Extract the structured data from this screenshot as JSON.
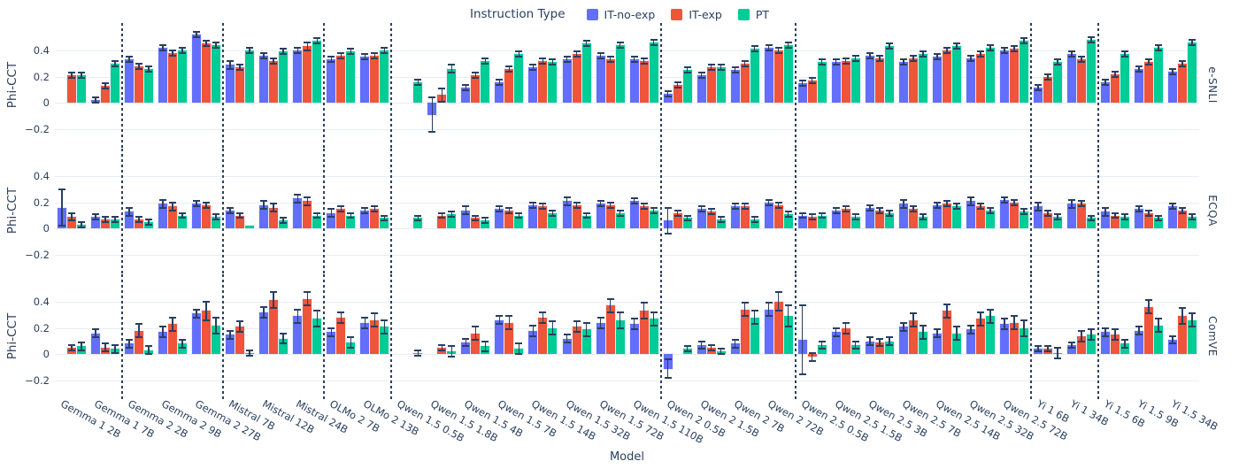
{
  "legend": {
    "title": "Instruction Type",
    "items": [
      {
        "label": "IT-no-exp",
        "color": "#636EFA"
      },
      {
        "label": "IT-exp",
        "color": "#EF553B"
      },
      {
        "label": "PT",
        "color": "#00CC96"
      }
    ]
  },
  "axes": {
    "y_label": "Phi-CCT",
    "x_label": "Model",
    "y_ticks": [
      {
        "label": "0.4",
        "value": 0.4
      },
      {
        "label": "0.2",
        "value": 0.2
      },
      {
        "label": "0",
        "value": 0
      },
      {
        "label": "−0.2",
        "value": -0.2
      }
    ]
  },
  "style": {
    "text_color": "#2a3f5f",
    "grid_color": "#e9edf5",
    "error_color": "#2a3f5f"
  },
  "chart_data": {
    "type": "bar",
    "orientation": "vertical",
    "facets": [
      "e-SNLI",
      "ECQA",
      "ComVE"
    ],
    "ylim": [
      -0.32,
      0.58
    ],
    "grid": true,
    "legend_position": "top-center",
    "categories": [
      "Gemma 1 2B",
      "Gemma 1 7B",
      "Gemma 2 2B",
      "Gemma 2 9B",
      "Gemma 2 27B",
      "Mistral 7B",
      "Mistral 12B",
      "Mistral 24B",
      "OLMo 2 7B",
      "OLMo 2 13B",
      "Qwen 1.5 0.5B",
      "Qwen 1.5 1.8B",
      "Qwen 1.5 4B",
      "Qwen 1.5 7B",
      "Qwen 1.5 14B",
      "Qwen 1.5 32B",
      "Qwen 1.5 72B",
      "Qwen 1.5 110B",
      "Qwen 2 0.5B",
      "Qwen 2 1.5B",
      "Qwen 2 7B",
      "Qwen 2 72B",
      "Qwen 2.5 0.5B",
      "Qwen 2.5 1.5B",
      "Qwen 2.5 3B",
      "Qwen 2.5 7B",
      "Qwen 2.5 14B",
      "Qwen 2.5 32B",
      "Qwen 2.5 72B",
      "Yi 1 6B",
      "Yi 1 34B",
      "Yi 1.5 6B",
      "Yi 1.5 9B",
      "Yi 1.5 34B"
    ],
    "separators_after": [
      1,
      4,
      7,
      9,
      17,
      21,
      28,
      30
    ],
    "panels": [
      {
        "facet": "e-SNLI",
        "series": [
          {
            "name": "IT-no-exp",
            "values": [
              0,
              0.02,
              0.33,
              0.42,
              0.52,
              0.29,
              0.36,
              0.4,
              0.33,
              0.35,
              0,
              -0.09,
              0.12,
              0.16,
              0.27,
              0.33,
              0.36,
              0.33,
              0.07,
              0.21,
              0.25,
              0.42,
              0.15,
              0.31,
              0.36,
              0.31,
              0.35,
              0.34,
              0.4,
              0.12,
              0.37,
              0.16,
              0.26,
              0.24
            ],
            "errors": [
              0,
              0.02,
              0.02,
              0.02,
              0.02,
              0.03,
              0.02,
              0.02,
              0.02,
              0.02,
              0,
              0.13,
              0.02,
              0.02,
              0.02,
              0.02,
              0.02,
              0.02,
              0.02,
              0.02,
              0.02,
              0.02,
              0.02,
              0.02,
              0.02,
              0.02,
              0.02,
              0.02,
              0.02,
              0.02,
              0.02,
              0.02,
              0.02,
              0.02
            ]
          },
          {
            "name": "IT-exp",
            "values": [
              0.21,
              0.13,
              0.28,
              0.38,
              0.45,
              0.27,
              0.32,
              0.43,
              0.36,
              0.36,
              0,
              0.06,
              0.21,
              0.26,
              0.32,
              0.37,
              0.33,
              0.32,
              0.14,
              0.27,
              0.3,
              0.4,
              0.17,
              0.32,
              0.34,
              0.34,
              0.4,
              0.37,
              0.41,
              0.2,
              0.33,
              0.22,
              0.31,
              0.3
            ],
            "errors": [
              0.02,
              0.02,
              0.02,
              0.02,
              0.02,
              0.02,
              0.02,
              0.03,
              0.02,
              0.02,
              0,
              0.05,
              0.02,
              0.02,
              0.02,
              0.02,
              0.02,
              0.02,
              0.02,
              0.02,
              0.02,
              0.02,
              0.02,
              0.02,
              0.02,
              0.02,
              0.02,
              0.02,
              0.02,
              0.02,
              0.02,
              0.02,
              0.02,
              0.02
            ]
          },
          {
            "name": "PT",
            "values": [
              0.21,
              0.3,
              0.26,
              0.4,
              0.44,
              0.4,
              0.39,
              0.47,
              0.39,
              0.4,
              0.16,
              0.26,
              0.32,
              0.37,
              0.31,
              0.45,
              0.44,
              0.46,
              0.25,
              0.27,
              0.41,
              0.44,
              0.31,
              0.34,
              0.43,
              0.37,
              0.43,
              0.42,
              0.47,
              0.31,
              0.48,
              0.37,
              0.42,
              0.46
            ],
            "errors": [
              0.02,
              0.02,
              0.02,
              0.02,
              0.02,
              0.02,
              0.02,
              0.02,
              0.02,
              0.02,
              0.02,
              0.03,
              0.02,
              0.02,
              0.02,
              0.02,
              0.02,
              0.02,
              0.02,
              0.02,
              0.02,
              0.02,
              0.02,
              0.02,
              0.02,
              0.02,
              0.02,
              0.02,
              0.02,
              0.02,
              0.02,
              0.02,
              0.02,
              0.02
            ]
          }
        ]
      },
      {
        "facet": "ECQA",
        "series": [
          {
            "name": "IT-no-exp",
            "values": [
              0.16,
              0.09,
              0.13,
              0.19,
              0.19,
              0.14,
              0.18,
              0.23,
              0.12,
              0.14,
              0,
              0,
              0.14,
              0.15,
              0.18,
              0.21,
              0.19,
              0.21,
              0.06,
              0.15,
              0.17,
              0.2,
              0.1,
              0.14,
              0.16,
              0.19,
              0.18,
              0.21,
              0.22,
              0.17,
              0.19,
              0.13,
              0.15,
              0.17
            ],
            "errors": [
              0.14,
              0.02,
              0.03,
              0.03,
              0.02,
              0.02,
              0.03,
              0.03,
              0.03,
              0.02,
              0,
              0,
              0.03,
              0.02,
              0.02,
              0.03,
              0.02,
              0.02,
              0.1,
              0.02,
              0.02,
              0.02,
              0.02,
              0.02,
              0.02,
              0.03,
              0.02,
              0.03,
              0.02,
              0.03,
              0.03,
              0.03,
              0.02,
              0.02
            ]
          },
          {
            "name": "IT-exp",
            "values": [
              0.09,
              0.07,
              0.07,
              0.17,
              0.18,
              0.1,
              0.16,
              0.21,
              0.15,
              0.15,
              0,
              0.1,
              0.08,
              0.14,
              0.17,
              0.18,
              0.18,
              0.17,
              0.12,
              0.13,
              0.17,
              0.18,
              0.09,
              0.15,
              0.14,
              0.15,
              0.19,
              0.17,
              0.2,
              0.12,
              0.19,
              0.1,
              0.12,
              0.14
            ],
            "errors": [
              0.03,
              0.02,
              0.02,
              0.03,
              0.02,
              0.02,
              0.03,
              0.03,
              0.02,
              0.02,
              0,
              0.02,
              0.02,
              0.02,
              0.02,
              0.02,
              0.02,
              0.02,
              0.02,
              0.02,
              0.02,
              0.02,
              0.02,
              0.02,
              0.02,
              0.02,
              0.02,
              0.02,
              0.02,
              0.02,
              0.02,
              0.02,
              0.02,
              0.02
            ]
          },
          {
            "name": "PT",
            "values": [
              0.03,
              0.07,
              0.05,
              0.1,
              0.09,
              0.02,
              0.06,
              0.1,
              0.1,
              0.08,
              0.08,
              0.11,
              0.06,
              0.1,
              0.12,
              0.1,
              0.12,
              0.14,
              0.08,
              0.07,
              0.07,
              0.11,
              0.1,
              0.09,
              0.12,
              0.09,
              0.17,
              0.14,
              0.13,
              0.09,
              0.08,
              0.09,
              0.08,
              0.09
            ],
            "errors": [
              0.02,
              0.02,
              0.02,
              0.02,
              0.02,
              0.01,
              0.02,
              0.02,
              0.02,
              0.02,
              0.02,
              0.02,
              0.02,
              0.02,
              0.02,
              0.02,
              0.02,
              0.02,
              0.02,
              0.02,
              0.02,
              0.02,
              0.02,
              0.02,
              0.02,
              0.02,
              0.02,
              0.02,
              0.02,
              0.02,
              0.02,
              0.02,
              0.02,
              0.02
            ]
          }
        ]
      },
      {
        "facet": "ComVE",
        "series": [
          {
            "name": "IT-no-exp",
            "values": [
              0,
              0.16,
              0.08,
              0.17,
              0.31,
              0.15,
              0.32,
              0.29,
              0.17,
              0.24,
              0,
              0,
              0.09,
              0.26,
              0.18,
              0.12,
              0.24,
              0.23,
              -0.11,
              0.07,
              0.08,
              0.34,
              0.11,
              0.17,
              0.1,
              0.21,
              0.16,
              0.19,
              0.23,
              0.04,
              0.07,
              0.17,
              0.18,
              0.11
            ],
            "errors": [
              0,
              0.03,
              0.03,
              0.04,
              0.03,
              0.03,
              0.04,
              0.05,
              0.03,
              0.04,
              0,
              0,
              0.03,
              0.03,
              0.04,
              0.03,
              0.04,
              0.04,
              0.07,
              0.03,
              0.03,
              0.05,
              0.26,
              0.03,
              0.03,
              0.03,
              0.03,
              0.03,
              0.04,
              0.02,
              0.02,
              0.03,
              0.03,
              0.03
            ]
          },
          {
            "name": "IT-exp",
            "values": [
              0.05,
              0.05,
              0.18,
              0.23,
              0.33,
              0.21,
              0.41,
              0.42,
              0.28,
              0.26,
              0,
              0.05,
              0.16,
              0.24,
              0.28,
              0.21,
              0.37,
              0.33,
              0,
              0.05,
              0.34,
              0.4,
              -0.02,
              0.2,
              0.09,
              0.26,
              0.33,
              0.27,
              0.24,
              0.04,
              0.14,
              0.15,
              0.36,
              0.29
            ],
            "errors": [
              0.02,
              0.03,
              0.05,
              0.05,
              0.07,
              0.04,
              0.06,
              0.05,
              0.04,
              0.05,
              0,
              0.02,
              0.05,
              0.05,
              0.04,
              0.04,
              0.05,
              0.06,
              0,
              0.02,
              0.05,
              0.07,
              0.03,
              0.04,
              0.03,
              0.05,
              0.05,
              0.05,
              0.05,
              0.02,
              0.04,
              0.04,
              0.05,
              0.06
            ]
          },
          {
            "name": "PT",
            "values": [
              0.06,
              0.04,
              0.03,
              0.08,
              0.22,
              0.01,
              0.12,
              0.27,
              0.09,
              0.21,
              0.01,
              0.02,
              0.06,
              0.04,
              0.2,
              0.19,
              0.26,
              0.27,
              0.04,
              0.02,
              0.28,
              0.29,
              0.07,
              0.07,
              0.1,
              0.17,
              0.16,
              0.29,
              0.2,
              0.01,
              0.15,
              0.08,
              0.22,
              0.26
            ],
            "errors": [
              0.03,
              0.03,
              0.03,
              0.03,
              0.06,
              0.02,
              0.04,
              0.06,
              0.04,
              0.05,
              0.02,
              0.04,
              0.04,
              0.04,
              0.05,
              0.05,
              0.06,
              0.05,
              0.02,
              0.02,
              0.05,
              0.08,
              0.03,
              0.03,
              0.03,
              0.05,
              0.05,
              0.05,
              0.06,
              0.04,
              0.04,
              0.03,
              0.05,
              0.05
            ]
          }
        ]
      }
    ]
  }
}
